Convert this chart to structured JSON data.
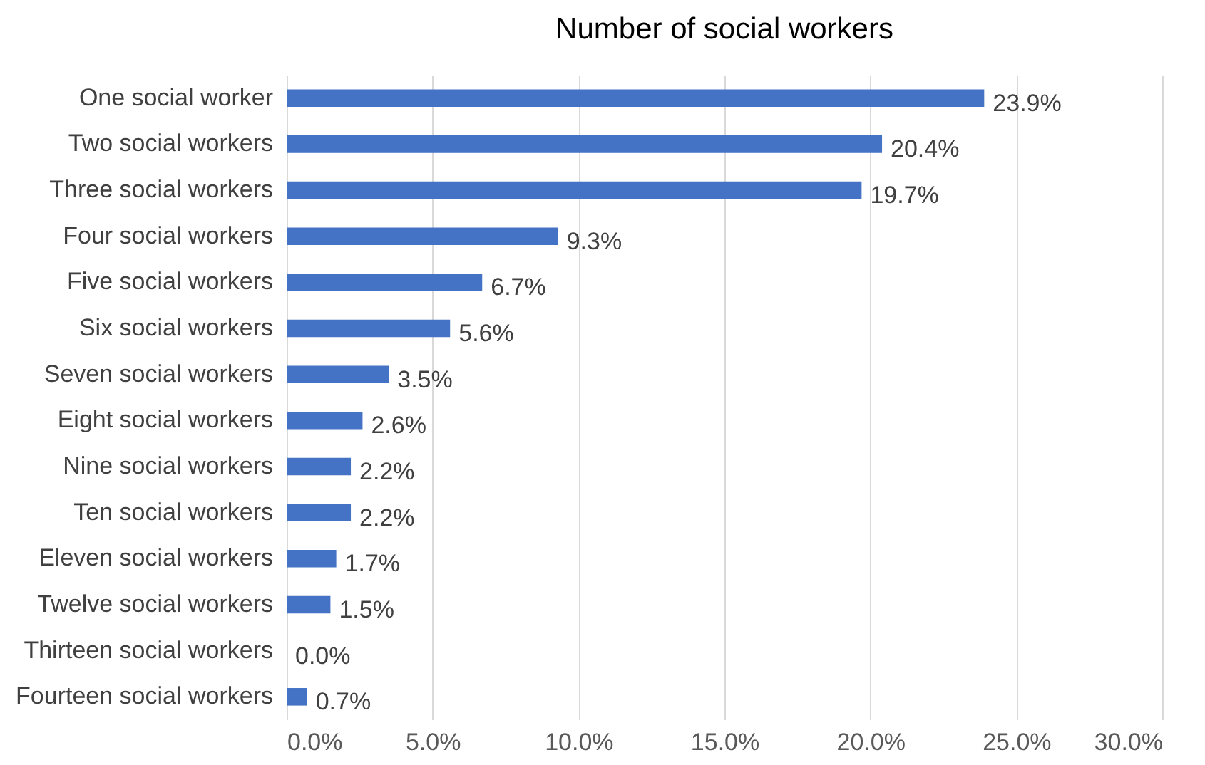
{
  "chart_data": {
    "type": "bar",
    "orientation": "horizontal",
    "title": "Number of social workers",
    "categories": [
      "One social worker",
      "Two social workers",
      "Three social workers",
      "Four social workers",
      "Five social workers",
      "Six social workers",
      "Seven social workers",
      "Eight social workers",
      "Nine social workers",
      "Ten social workers",
      "Eleven social workers",
      "Twelve social workers",
      "Thirteen social workers",
      "Fourteen social workers"
    ],
    "values": [
      23.9,
      20.4,
      19.7,
      9.3,
      6.7,
      5.6,
      3.5,
      2.6,
      2.2,
      2.2,
      1.7,
      1.5,
      0.0,
      0.7
    ],
    "value_labels": [
      "23.9%",
      "20.4%",
      "19.7%",
      "9.3%",
      "6.7%",
      "5.6%",
      "3.5%",
      "2.6%",
      "2.2%",
      "2.2%",
      "1.7%",
      "1.5%",
      "0.0%",
      "0.7%"
    ],
    "color": "#4472c4",
    "xlim": [
      0,
      30
    ],
    "xticks": [
      {
        "value": 0,
        "label": "0.0%"
      },
      {
        "value": 5,
        "label": "5.0%"
      },
      {
        "value": 10,
        "label": "10.0%"
      },
      {
        "value": 15,
        "label": "15.0%"
      },
      {
        "value": 20,
        "label": "20.0%"
      },
      {
        "value": 25,
        "label": "25.0%"
      },
      {
        "value": 30,
        "label": "30.0%"
      }
    ],
    "grid": "x"
  }
}
